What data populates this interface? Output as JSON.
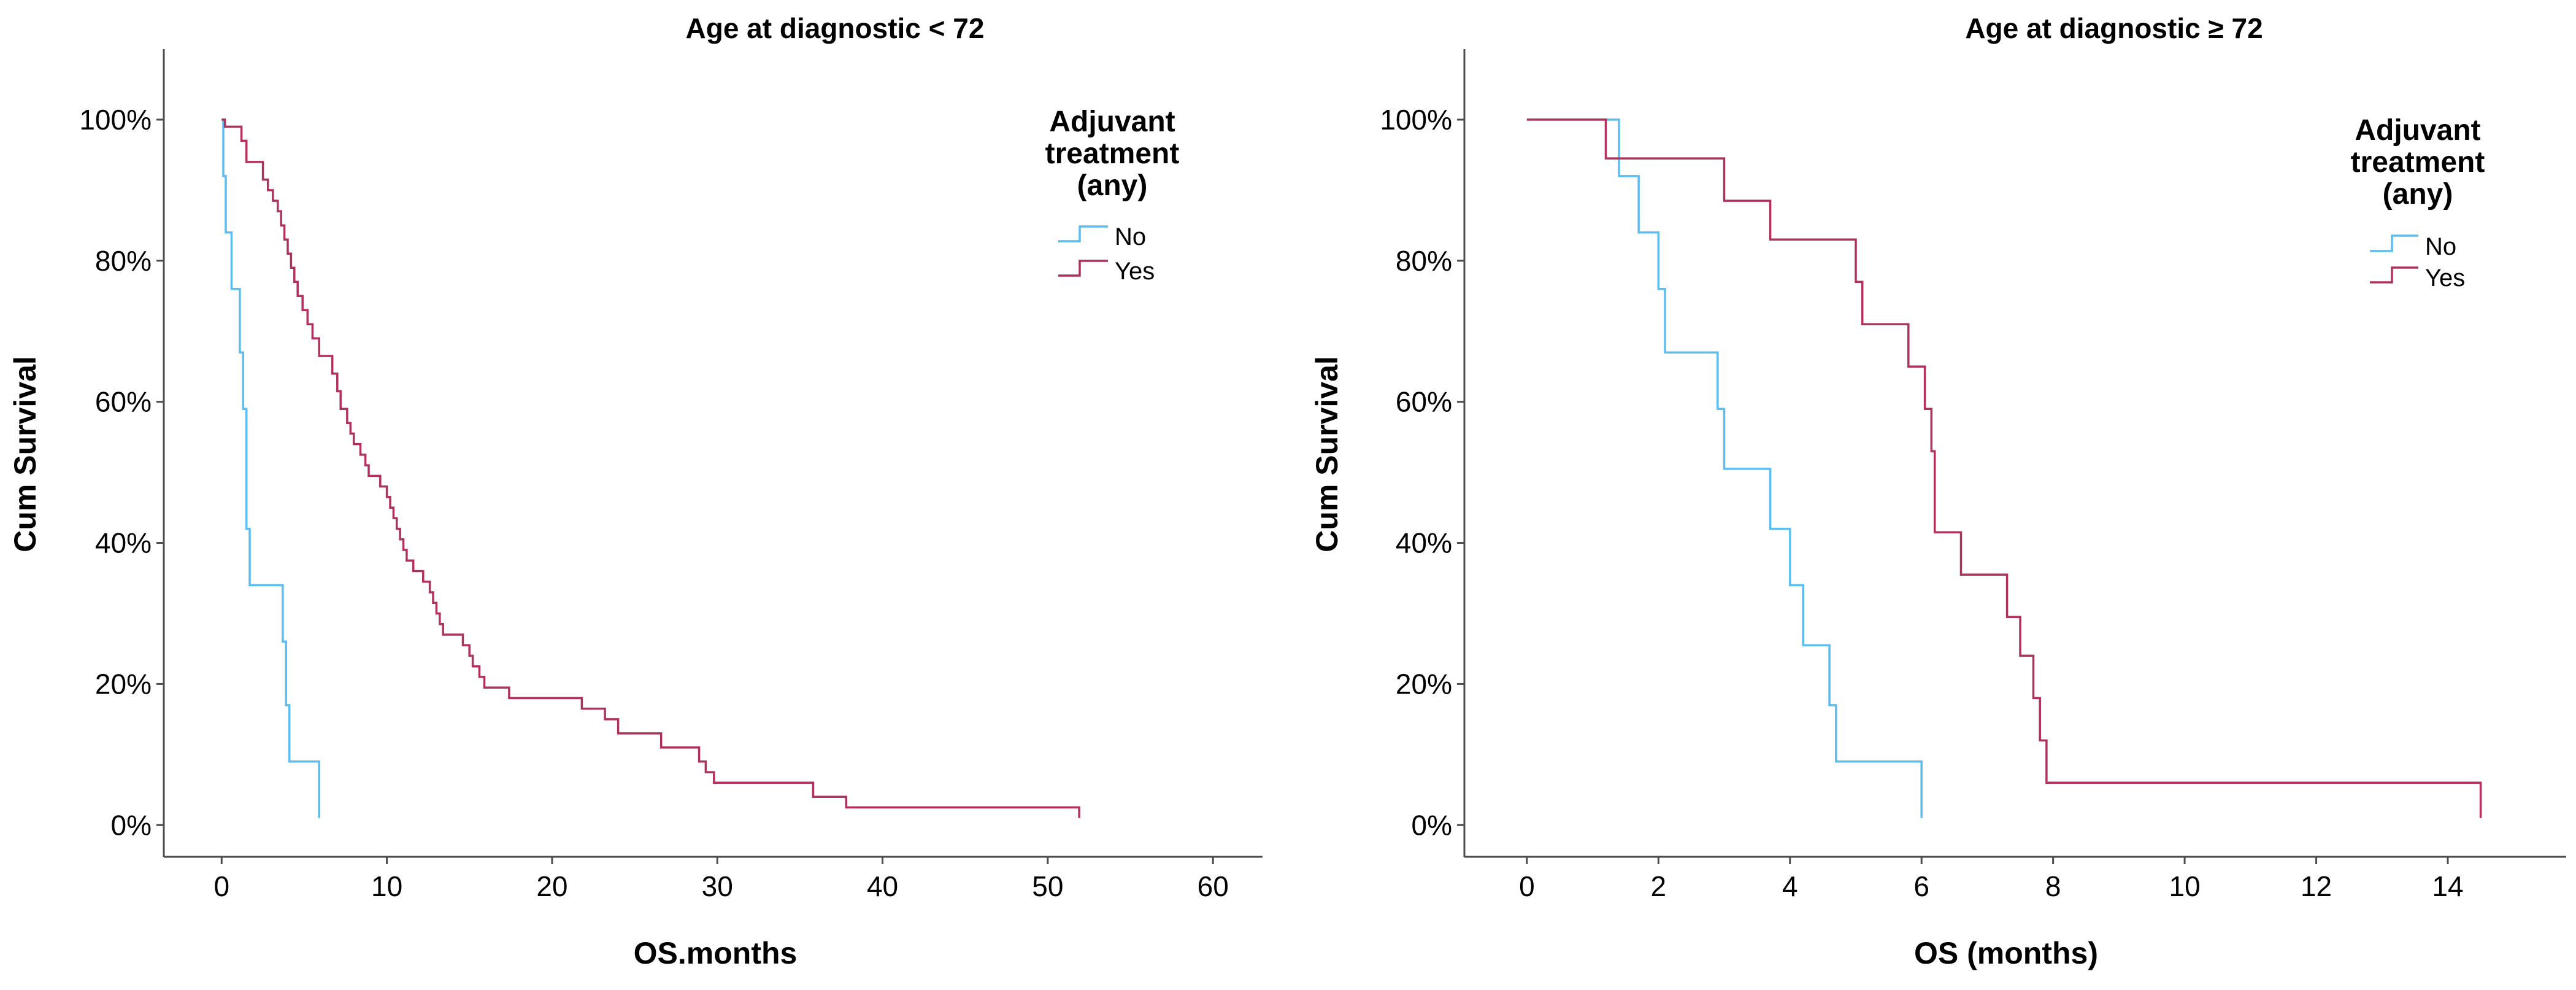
{
  "colors": {
    "no": "#5cbdf0",
    "yes": "#b0325a",
    "axis": "#4d4d4d",
    "text": "#000000"
  },
  "chart_data": [
    {
      "type": "line",
      "subtype": "kaplan-meier-step",
      "title": "Age at diagnostic < 72",
      "xlabel": "OS.months",
      "ylabel": "Cum Survival",
      "xlim": [
        -3.5,
        63
      ],
      "ylim": [
        -0.045,
        1.1
      ],
      "xticks": [
        0,
        10,
        20,
        30,
        40,
        50,
        60
      ],
      "xtick_labels": [
        "0",
        "10",
        "20",
        "30",
        "40",
        "50",
        "60"
      ],
      "yticks": [
        0,
        0.2,
        0.4,
        0.6,
        0.8,
        1.0
      ],
      "ytick_labels": [
        "0%",
        "20%",
        "40%",
        "60%",
        "80%",
        "100%"
      ],
      "legend": {
        "title_lines": [
          "Adjuvant",
          "treatment",
          "(any)"
        ],
        "entries": [
          "No",
          "Yes"
        ],
        "placement": "top-right"
      },
      "series": [
        {
          "name": "No",
          "color_key": "no",
          "steps": [
            [
              0,
              1.0
            ],
            [
              0.1,
              0.92
            ],
            [
              0.25,
              0.84
            ],
            [
              0.6,
              0.76
            ],
            [
              1.1,
              0.67
            ],
            [
              1.3,
              0.59
            ],
            [
              1.5,
              0.42
            ],
            [
              1.7,
              0.34
            ],
            [
              3.7,
              0.26
            ],
            [
              3.9,
              0.17
            ],
            [
              4.1,
              0.09
            ],
            [
              5.9,
              0.01
            ]
          ]
        },
        {
          "name": "Yes",
          "color_key": "yes",
          "steps": [
            [
              0,
              1.0
            ],
            [
              0.2,
              0.99
            ],
            [
              1.2,
              0.97
            ],
            [
              1.5,
              0.94
            ],
            [
              2.5,
              0.915
            ],
            [
              2.8,
              0.9
            ],
            [
              3.1,
              0.885
            ],
            [
              3.4,
              0.87
            ],
            [
              3.6,
              0.85
            ],
            [
              3.8,
              0.83
            ],
            [
              4.0,
              0.81
            ],
            [
              4.2,
              0.79
            ],
            [
              4.4,
              0.77
            ],
            [
              4.6,
              0.75
            ],
            [
              4.9,
              0.73
            ],
            [
              5.2,
              0.71
            ],
            [
              5.5,
              0.69
            ],
            [
              5.9,
              0.665
            ],
            [
              6.7,
              0.64
            ],
            [
              7.0,
              0.615
            ],
            [
              7.2,
              0.59
            ],
            [
              7.6,
              0.57
            ],
            [
              7.8,
              0.555
            ],
            [
              8.0,
              0.54
            ],
            [
              8.4,
              0.525
            ],
            [
              8.7,
              0.51
            ],
            [
              8.9,
              0.495
            ],
            [
              9.6,
              0.48
            ],
            [
              10.0,
              0.465
            ],
            [
              10.2,
              0.45
            ],
            [
              10.4,
              0.435
            ],
            [
              10.6,
              0.42
            ],
            [
              10.8,
              0.405
            ],
            [
              11.0,
              0.39
            ],
            [
              11.2,
              0.375
            ],
            [
              11.6,
              0.36
            ],
            [
              12.2,
              0.345
            ],
            [
              12.6,
              0.33
            ],
            [
              12.8,
              0.315
            ],
            [
              13.0,
              0.3
            ],
            [
              13.2,
              0.285
            ],
            [
              13.4,
              0.27
            ],
            [
              14.6,
              0.255
            ],
            [
              15.0,
              0.24
            ],
            [
              15.2,
              0.225
            ],
            [
              15.6,
              0.21
            ],
            [
              15.9,
              0.195
            ],
            [
              17.4,
              0.18
            ],
            [
              21.8,
              0.165
            ],
            [
              23.2,
              0.15
            ],
            [
              24.0,
              0.13
            ],
            [
              26.6,
              0.11
            ],
            [
              28.9,
              0.09
            ],
            [
              29.3,
              0.075
            ],
            [
              29.8,
              0.06
            ],
            [
              35.8,
              0.04
            ],
            [
              37.8,
              0.025
            ],
            [
              51.9,
              0.01
            ]
          ]
        }
      ]
    },
    {
      "type": "line",
      "subtype": "kaplan-meier-step",
      "title": "Age at diagnostic ≥ 72",
      "xlabel": "OS (months)",
      "ylabel": "Cum Survival",
      "xlim": [
        -0.95,
        15.8
      ],
      "ylim": [
        -0.045,
        1.1
      ],
      "xticks": [
        0,
        2,
        4,
        6,
        8,
        10,
        12,
        14
      ],
      "xtick_labels": [
        "0",
        "2",
        "4",
        "6",
        "8",
        "10",
        "12",
        "14"
      ],
      "yticks": [
        0,
        0.2,
        0.4,
        0.6,
        0.8,
        1.0
      ],
      "ytick_labels": [
        "0%",
        "20%",
        "40%",
        "60%",
        "80%",
        "100%"
      ],
      "legend": {
        "title_lines": [
          "Adjuvant",
          "treatment",
          "(any)"
        ],
        "entries": [
          "No",
          "Yes"
        ],
        "placement": "top-right"
      },
      "series": [
        {
          "name": "No",
          "color_key": "no",
          "steps": [
            [
              0,
              1.0
            ],
            [
              1.4,
              0.92
            ],
            [
              1.7,
              0.84
            ],
            [
              2.0,
              0.76
            ],
            [
              2.1,
              0.67
            ],
            [
              2.9,
              0.59
            ],
            [
              3.0,
              0.505
            ],
            [
              3.7,
              0.42
            ],
            [
              4.0,
              0.34
            ],
            [
              4.2,
              0.255
            ],
            [
              4.6,
              0.17
            ],
            [
              4.7,
              0.09
            ],
            [
              6.0,
              0.01
            ]
          ]
        },
        {
          "name": "Yes",
          "color_key": "yes",
          "steps": [
            [
              0,
              1.0
            ],
            [
              1.2,
              0.945
            ],
            [
              3.0,
              0.885
            ],
            [
              3.7,
              0.83
            ],
            [
              5.0,
              0.77
            ],
            [
              5.1,
              0.71
            ],
            [
              5.8,
              0.65
            ],
            [
              6.05,
              0.59
            ],
            [
              6.15,
              0.53
            ],
            [
              6.2,
              0.415
            ],
            [
              6.6,
              0.355
            ],
            [
              7.3,
              0.295
            ],
            [
              7.5,
              0.24
            ],
            [
              7.7,
              0.18
            ],
            [
              7.8,
              0.12
            ],
            [
              7.9,
              0.06
            ],
            [
              14.5,
              0.01
            ]
          ]
        }
      ]
    }
  ]
}
